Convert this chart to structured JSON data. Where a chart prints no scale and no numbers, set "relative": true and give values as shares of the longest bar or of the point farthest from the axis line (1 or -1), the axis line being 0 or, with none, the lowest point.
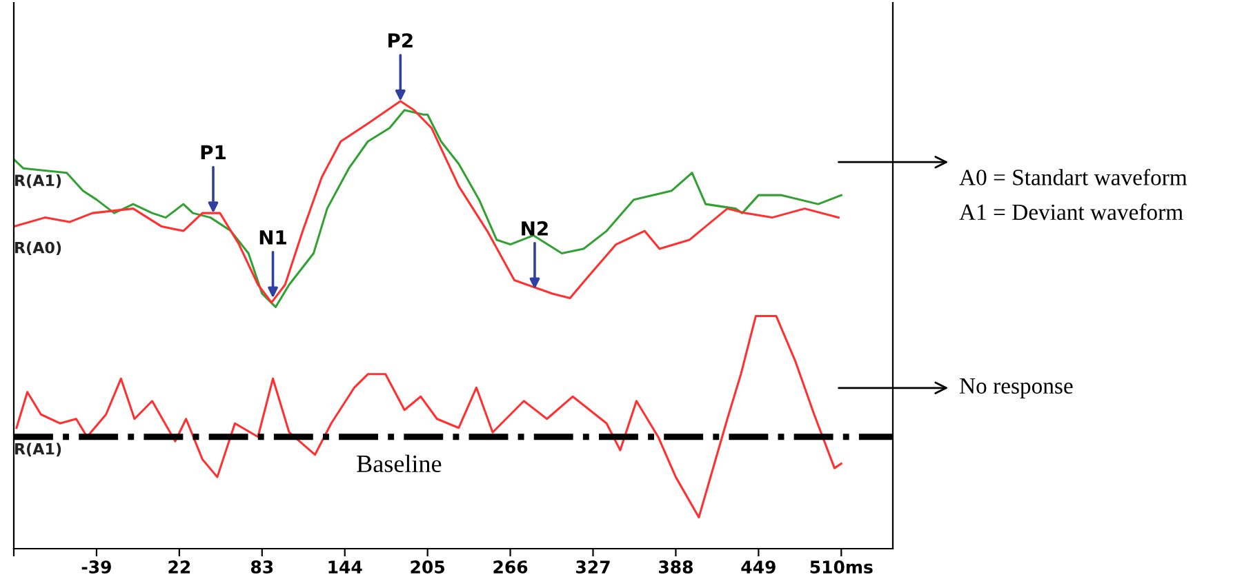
{
  "chart_data": {
    "type": "line",
    "relative": true,
    "xlim": [
      -100,
      548
    ],
    "xticks": [
      {
        "value": -100,
        "label": null
      },
      -39,
      22,
      83,
      144,
      205,
      266,
      327,
      388,
      449,
      {
        "value": 510,
        "label": "510ms"
      }
    ],
    "grid": false,
    "marker": "none",
    "line_style": "solid",
    "series": [
      {
        "name": "R(A1)",
        "color": "#33a033",
        "x": [
          -100,
          -93,
          -61,
          -49,
          -39,
          -26,
          -12,
          2,
          12,
          25,
          32,
          45,
          60,
          73,
          83,
          93,
          103,
          121,
          131,
          147,
          161,
          177,
          188,
          202,
          205,
          215,
          228,
          243,
          256,
          266,
          283,
          304,
          320,
          337,
          357,
          385,
          400,
          410,
          432,
          437,
          449,
          466,
          493,
          510
        ],
        "values": [
          0.87,
          0.85,
          0.84,
          0.8,
          0.78,
          0.75,
          0.77,
          0.75,
          0.74,
          0.77,
          0.75,
          0.74,
          0.71,
          0.66,
          0.57,
          0.54,
          0.59,
          0.66,
          0.76,
          0.85,
          0.91,
          0.94,
          0.98,
          0.97,
          0.97,
          0.91,
          0.86,
          0.78,
          0.69,
          0.68,
          0.7,
          0.66,
          0.67,
          0.71,
          0.78,
          0.8,
          0.84,
          0.77,
          0.76,
          0.75,
          0.79,
          0.79,
          0.77,
          0.79
        ]
      },
      {
        "name": "R(A0)",
        "color": "#ff3030",
        "x": [
          -100,
          -77,
          -59,
          -42,
          -12,
          9,
          25,
          39,
          52,
          66,
          80,
          90,
          100,
          113,
          127,
          141,
          161,
          185,
          195,
          208,
          228,
          249,
          269,
          297,
          310,
          324,
          344,
          365,
          376,
          398,
          426,
          439,
          459,
          483,
          508
        ],
        "values": [
          0.72,
          0.74,
          0.73,
          0.75,
          0.76,
          0.72,
          0.71,
          0.75,
          0.75,
          0.68,
          0.59,
          0.55,
          0.59,
          0.71,
          0.83,
          0.91,
          0.95,
          1,
          0.98,
          0.94,
          0.81,
          0.71,
          0.6,
          0.57,
          0.56,
          0.61,
          0.68,
          0.71,
          0.67,
          0.69,
          0.76,
          0.75,
          0.74,
          0.76,
          0.74
        ]
      },
      {
        "name": "R(A1)",
        "color": "#ff3030",
        "x": [
          -98,
          -90,
          -80,
          -66,
          -54,
          -46,
          -32,
          -21,
          -11,
          2,
          19,
          27,
          39,
          50,
          63,
          80,
          91,
          103,
          122,
          134,
          151,
          161,
          174,
          188,
          200,
          212,
          228,
          241,
          253,
          276,
          293,
          312,
          337,
          347,
          359,
          375,
          388,
          405,
          426,
          436,
          447,
          462,
          476,
          490,
          505,
          510
        ],
        "values": [
          0.27,
          0.35,
          0.3,
          0.28,
          0.29,
          0.25,
          0.3,
          0.38,
          0.29,
          0.33,
          0.24,
          0.29,
          0.2,
          0.16,
          0.28,
          0.25,
          0.38,
          0.26,
          0.21,
          0.28,
          0.36,
          0.39,
          0.39,
          0.31,
          0.34,
          0.29,
          0.27,
          0.36,
          0.26,
          0.33,
          0.29,
          0.34,
          0.28,
          0.22,
          0.33,
          0.25,
          0.16,
          0.07,
          0.29,
          0.39,
          0.52,
          0.52,
          0.42,
          0.3,
          0.18,
          0.19
        ]
      }
    ],
    "ref_lines": [
      {
        "axis": "y",
        "value": 0.25,
        "label": "Baseline",
        "color": "#000000",
        "line_style": "dashdot"
      }
    ],
    "annotations": [
      {
        "text": "P1",
        "x": 47,
        "y": 0.75
      },
      {
        "text": "N1",
        "x": 91,
        "y": 0.56
      },
      {
        "text": "P2",
        "x": 185,
        "y": 1
      },
      {
        "text": "N2",
        "x": 284,
        "y": 0.58
      },
      "A0 = Standart waveform",
      "A1 = Deviant waveform",
      "No response"
    ]
  }
}
